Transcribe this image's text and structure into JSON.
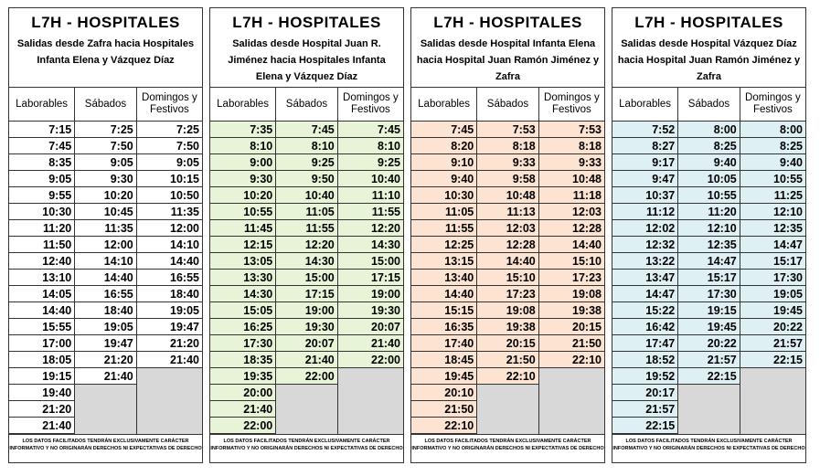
{
  "colors": {
    "p1": "#ffffff",
    "p2": "#e8f4d8",
    "p3": "#fde4d2",
    "p4": "#dff0f5"
  },
  "panels": [
    {
      "title": "L7H - HOSPITALES",
      "subtitle": "Salidas desde Zafra hacia Hospitales Infanta Elena y Vázquez Díaz",
      "headers": [
        "Laborables",
        "Sábados",
        "Domingos y Festivos"
      ],
      "laborables": [
        "7:15",
        "7:45",
        "8:35",
        "9:05",
        "9:55",
        "10:30",
        "11:20",
        "11:50",
        "12:40",
        "13:10",
        "14:05",
        "14:40",
        "15:55",
        "17:00",
        "18:05",
        "19:15",
        "19:40",
        "21:20",
        "21:40"
      ],
      "sabados": [
        "7:25",
        "7:50",
        "9:05",
        "9:30",
        "10:20",
        "10:45",
        "11:35",
        "12:00",
        "14:10",
        "14:40",
        "16:55",
        "18:40",
        "19:05",
        "19:47",
        "21:20",
        "21:40"
      ],
      "domingos": [
        "7:25",
        "7:50",
        "9:05",
        "10:15",
        "10:50",
        "11:35",
        "12:00",
        "14:10",
        "14:40",
        "16:55",
        "18:40",
        "19:05",
        "19:47",
        "21:20",
        "21:40"
      ],
      "footer": "LOS DATOS FACILITADOS TENDRÁN EXCLUSIVAMENTE CARÁCTER INFORMATIVO Y NO ORIGINARÁN DERECHOS NI EXPECTATIVAS DE DERECHO"
    },
    {
      "title": "L7H - HOSPITALES",
      "subtitle": "Salidas desde Hospital Juan R. Jiménez hacia Hospitales Infanta Elena y Vázquez Díaz",
      "headers": [
        "Laborables",
        "Sábados",
        "Domingos y Festivos"
      ],
      "laborables": [
        "7:35",
        "8:10",
        "9:00",
        "9:30",
        "10:20",
        "10:55",
        "11:45",
        "12:15",
        "13:05",
        "13:30",
        "14:30",
        "15:05",
        "16:25",
        "17:30",
        "18:35",
        "19:35",
        "20:00",
        "21:40",
        "22:00"
      ],
      "sabados": [
        "7:45",
        "8:10",
        "9:25",
        "9:50",
        "10:40",
        "11:05",
        "11:55",
        "12:20",
        "14:30",
        "15:00",
        "17:15",
        "19:00",
        "19:30",
        "20:07",
        "21:40",
        "22:00"
      ],
      "domingos": [
        "7:45",
        "8:10",
        "9:25",
        "10:40",
        "11:10",
        "11:55",
        "12:20",
        "14:30",
        "15:00",
        "17:15",
        "19:00",
        "19:30",
        "20:07",
        "21:40",
        "22:00"
      ],
      "footer": "LOS DATOS FACILITADOS TENDRÁN EXCLUSIVAMENTE CARÁCTER INFORMATIVO Y NO ORIGINARÁN DERECHOS NI EXPECTATIVAS DE DERECHO"
    },
    {
      "title": "L7H - HOSPITALES",
      "subtitle": "Salidas desde Hospital Infanta Elena hacia Hospital Juan Ramón Jiménez y Zafra",
      "headers": [
        "Laborables",
        "Sábados",
        "Domingos y Festivos"
      ],
      "laborables": [
        "7:45",
        "8:20",
        "9:10",
        "9:40",
        "10:30",
        "11:05",
        "11:55",
        "12:25",
        "13:15",
        "13:40",
        "14:40",
        "15:15",
        "16:35",
        "17:40",
        "18:45",
        "19:45",
        "20:10",
        "21:50",
        "22:10"
      ],
      "sabados": [
        "7:53",
        "8:18",
        "9:33",
        "9:58",
        "10:48",
        "11:13",
        "12:03",
        "12:28",
        "14:40",
        "15:10",
        "17:23",
        "19:08",
        "19:38",
        "20:15",
        "21:50",
        "22:10"
      ],
      "domingos": [
        "7:53",
        "8:18",
        "9:33",
        "10:48",
        "11:18",
        "12:03",
        "12:28",
        "14:40",
        "15:10",
        "17:23",
        "19:08",
        "19:38",
        "20:15",
        "21:50",
        "22:10"
      ],
      "footer": "LOS DATOS FACILITADOS TENDRÁN EXCLUSIVAMENTE CARÁCTER INFORMATIVO Y NO ORIGINARÁN DERECHOS NI EXPECTATIVAS DE DERECHO"
    },
    {
      "title": "L7H - HOSPITALES",
      "subtitle": "Salidas desde Hospital Vázquez Díaz hacia Hospital Juan Ramón Jiménez y Zafra",
      "headers": [
        "Laborables",
        "Sábados",
        "Domingos y Festivos"
      ],
      "laborables": [
        "7:52",
        "8:27",
        "9:17",
        "9:47",
        "10:37",
        "11:12",
        "12:02",
        "12:32",
        "13:22",
        "13:47",
        "14:47",
        "15:22",
        "16:42",
        "17:47",
        "18:52",
        "19:52",
        "20:17",
        "21:57",
        "22:15"
      ],
      "sabados": [
        "8:00",
        "8:25",
        "9:40",
        "10:05",
        "10:55",
        "11:20",
        "12:10",
        "12:35",
        "14:47",
        "15:17",
        "17:30",
        "19:15",
        "19:45",
        "20:22",
        "21:57",
        "22:15"
      ],
      "domingos": [
        "8:00",
        "8:25",
        "9:40",
        "10:55",
        "11:25",
        "12:10",
        "12:35",
        "14:47",
        "15:17",
        "17:30",
        "19:05",
        "19:45",
        "20:22",
        "21:57",
        "22:15"
      ],
      "footer": "LOS DATOS FACILITADOS TENDRÁN EXCLUSIVAMENTE CARÁCTER INFORMATIVO Y NO ORIGINARÁN DERECHOS NI EXPECTATIVAS DE DERECHO"
    }
  ]
}
